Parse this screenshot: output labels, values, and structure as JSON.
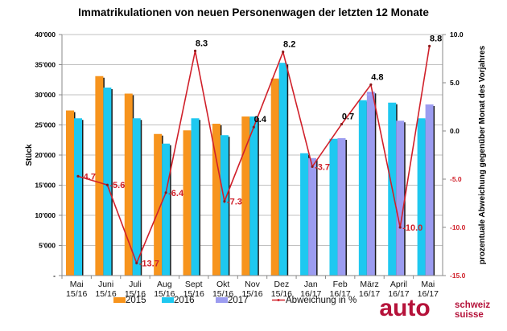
{
  "chart_data": {
    "type": "bar",
    "title": "Immatrikulationen von neuen Personenwagen der letzten 12 Monate",
    "ylabel": "Stück",
    "y2label": "prozentuale Abweichung gegenüber Monat des Vorjahres",
    "ylim": [
      0,
      40000
    ],
    "y2lim": [
      -15.0,
      10.0
    ],
    "grid": true,
    "legend_position": "bottom",
    "yticks": [
      "-",
      "5'000",
      "10'000",
      "15'000",
      "20'000",
      "25'000",
      "30'000",
      "35'000",
      "40'000"
    ],
    "y2ticks": [
      "-15.0",
      "-10.0",
      "-5.0",
      "0.0",
      "5.0",
      "10.0"
    ],
    "categories": [
      [
        "Mai",
        "15/16"
      ],
      [
        "Juni",
        "15/16"
      ],
      [
        "Juli",
        "15/16"
      ],
      [
        "Aug",
        "15/16"
      ],
      [
        "Sept",
        "15/16"
      ],
      [
        "Okt",
        "15/16"
      ],
      [
        "Nov",
        "15/16"
      ],
      [
        "Dez",
        "15/16"
      ],
      [
        "Jan",
        "16/17"
      ],
      [
        "Feb",
        "16/17"
      ],
      [
        "März",
        "16/17"
      ],
      [
        "April",
        "16/17"
      ],
      [
        "Mai",
        "16/17"
      ]
    ],
    "series": [
      {
        "name": "2015",
        "type": "bar",
        "color": "#f7941d",
        "values": [
          27400,
          33100,
          30200,
          23500,
          24100,
          25200,
          26400,
          32700,
          null,
          null,
          null,
          null,
          null
        ]
      },
      {
        "name": "2016",
        "type": "bar",
        "color": "#1ec8f0",
        "values": [
          26100,
          31200,
          26100,
          21900,
          26100,
          23300,
          26400,
          35300,
          20300,
          22700,
          29100,
          28700,
          26100
        ]
      },
      {
        "name": "2017",
        "type": "bar",
        "color": "#9c9cf0",
        "values": [
          null,
          null,
          null,
          null,
          null,
          null,
          null,
          null,
          19500,
          22800,
          30500,
          25700,
          28400
        ]
      },
      {
        "name": "Abweichung in %",
        "type": "line",
        "axis": "right",
        "color": "#d0202a",
        "values": [
          -4.7,
          -5.6,
          -13.7,
          -6.4,
          8.3,
          -7.3,
          0.4,
          8.2,
          -3.7,
          0.7,
          4.8,
          -10.0,
          8.8
        ],
        "labels": [
          "-4.7",
          "-5.6",
          "-13.7",
          "-6.4",
          "8.3",
          "-7.3",
          "0.4",
          "8.2",
          "-3.7",
          "0.7",
          "4.8",
          "-10.0",
          "8.8"
        ]
      }
    ]
  },
  "logo": {
    "main": "auto",
    "line1": "schweiz",
    "line2": "suisse"
  }
}
